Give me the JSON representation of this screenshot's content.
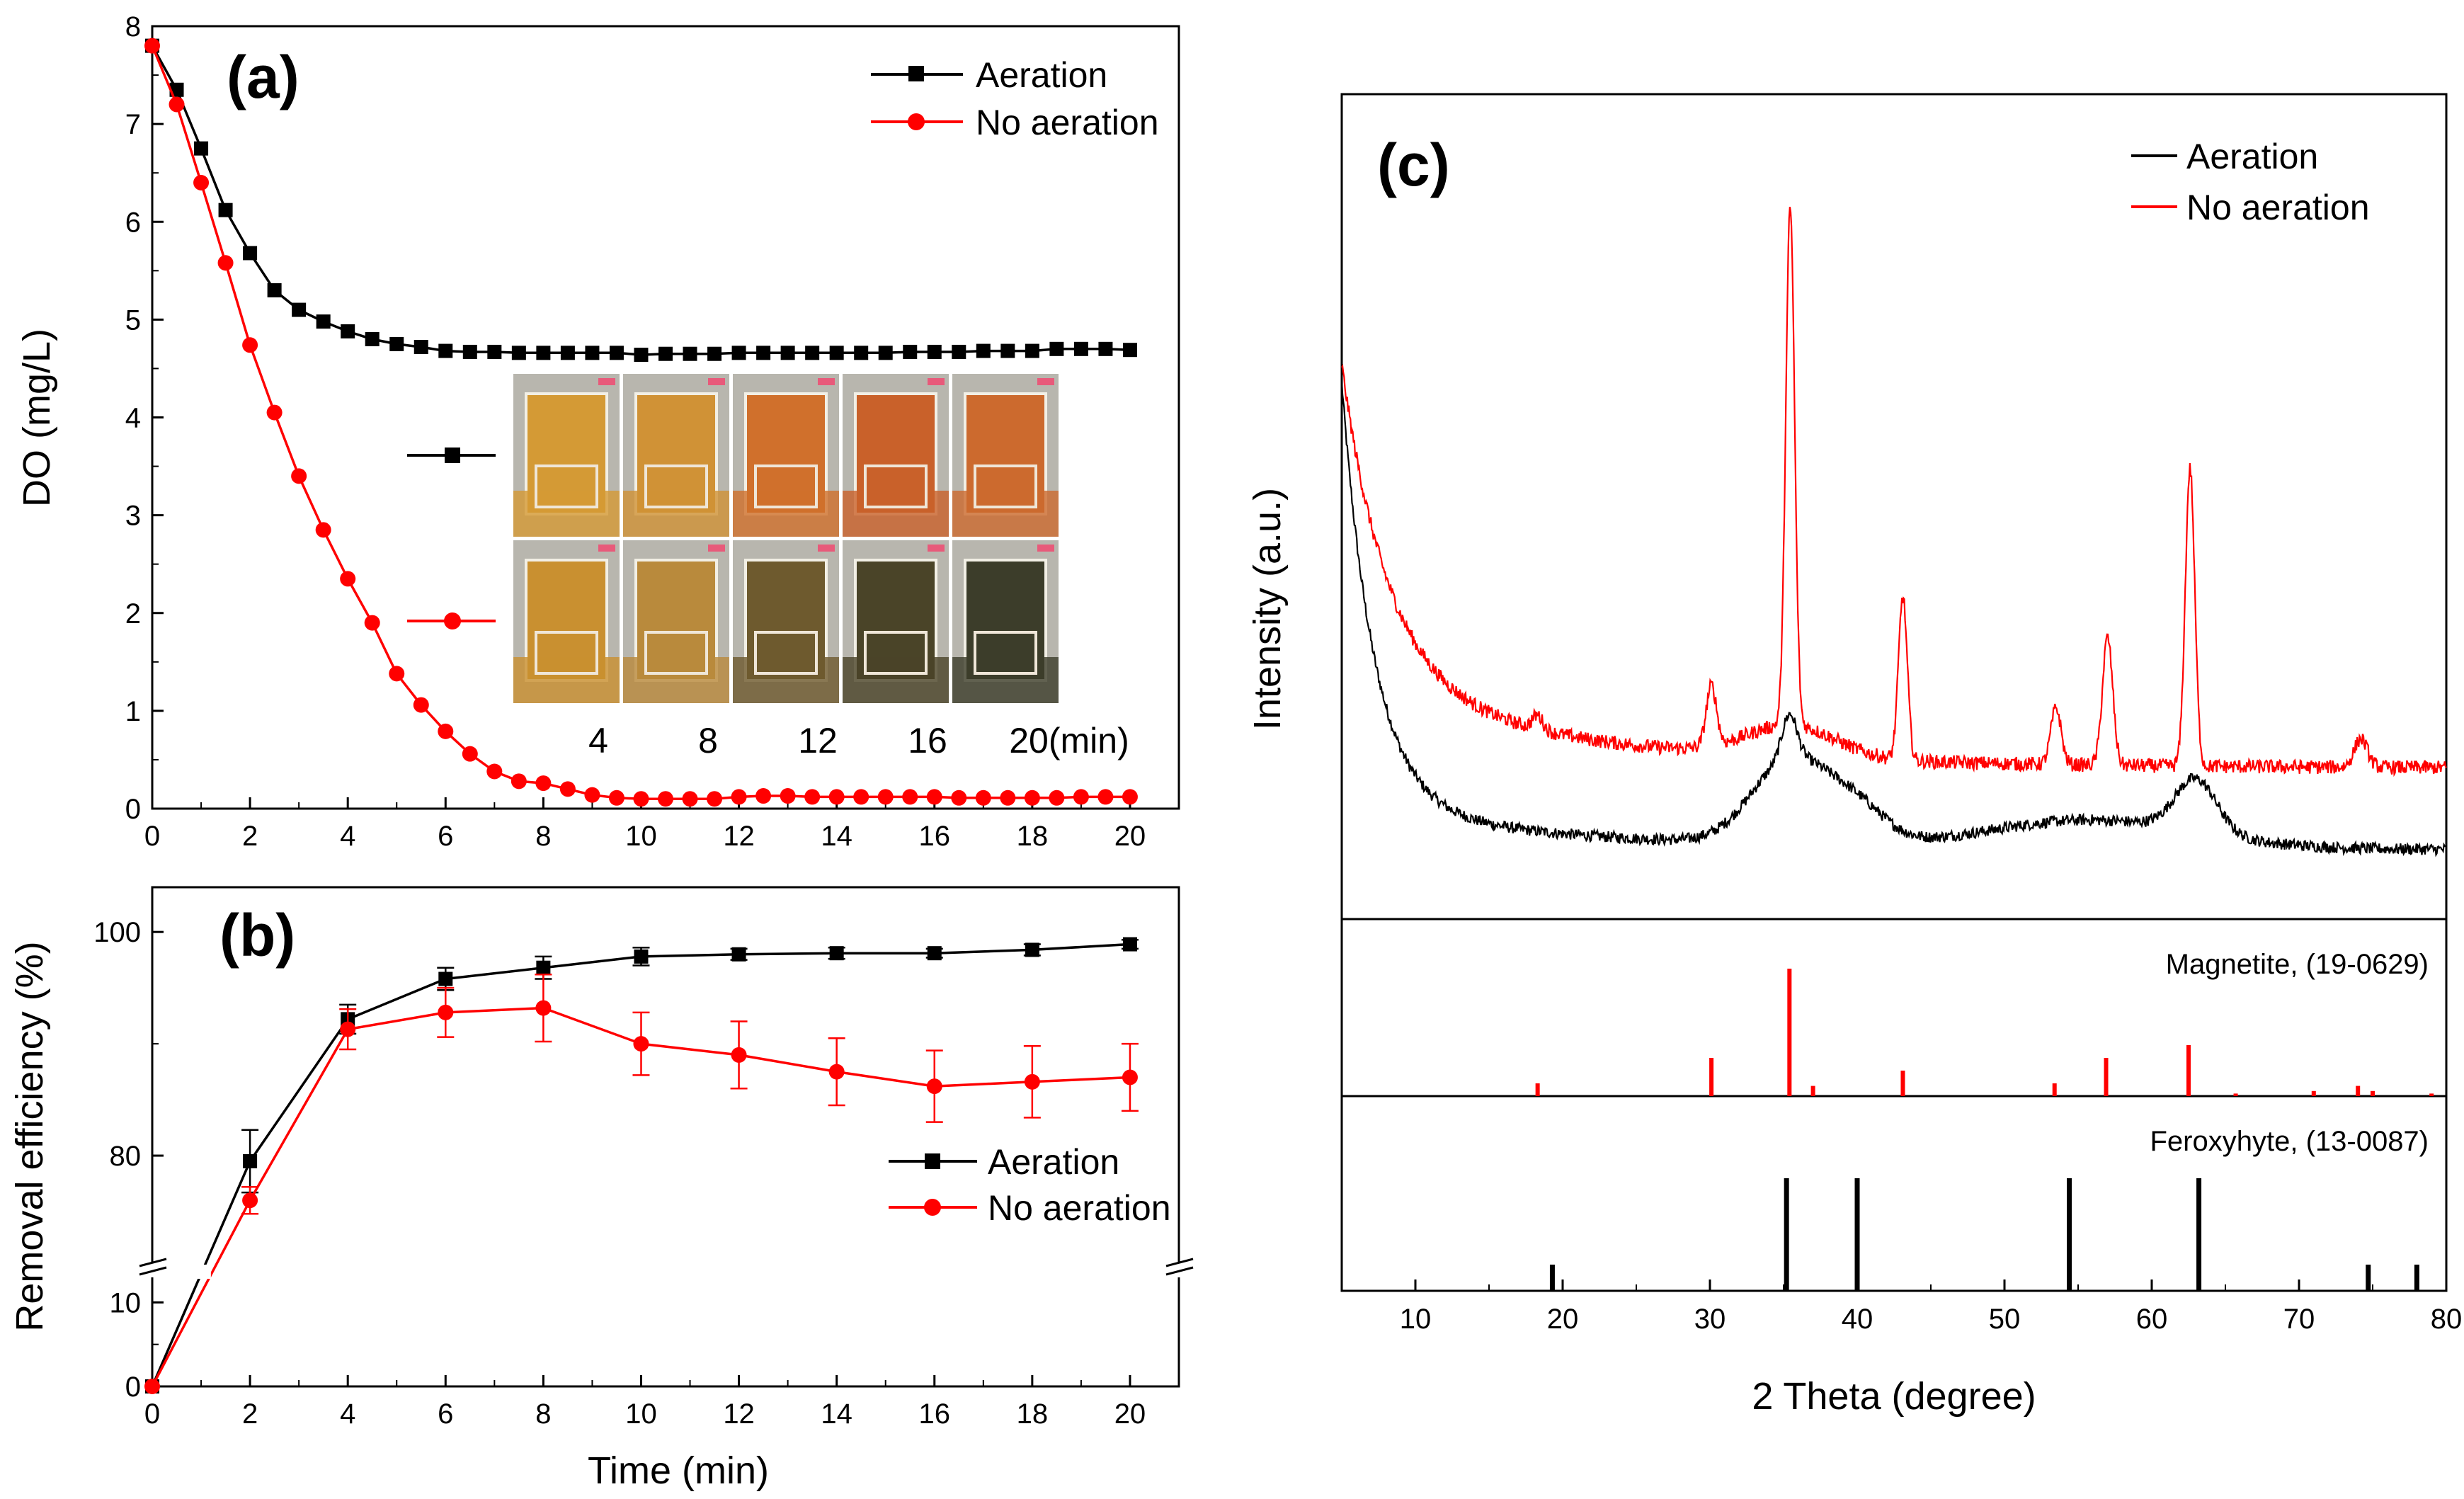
{
  "chart_data": [
    {
      "id": "a",
      "type": "line",
      "panel_label": "(a)",
      "xlabel": "",
      "ylabel": "DO (mg/L)",
      "xlim": [
        0,
        21
      ],
      "ylim": [
        0,
        8
      ],
      "xticks": [
        0,
        2,
        4,
        6,
        8,
        10,
        12,
        14,
        16,
        18,
        20
      ],
      "yticks": [
        0,
        1,
        2,
        3,
        4,
        5,
        6,
        7,
        8
      ],
      "legend_position": "top-right",
      "series": [
        {
          "name": "Aeration",
          "color": "#000000",
          "marker": "square",
          "x": [
            0,
            0.5,
            1,
            1.5,
            2,
            2.5,
            3,
            3.5,
            4,
            4.5,
            5,
            5.5,
            6,
            6.5,
            7,
            7.5,
            8,
            8.5,
            9,
            9.5,
            10,
            10.5,
            11,
            11.5,
            12,
            12.5,
            13,
            13.5,
            14,
            14.5,
            15,
            15.5,
            16,
            16.5,
            17,
            17.5,
            18,
            18.5,
            19,
            19.5,
            20
          ],
          "y": [
            7.8,
            7.35,
            6.75,
            6.12,
            5.68,
            5.3,
            5.1,
            4.98,
            4.88,
            4.8,
            4.75,
            4.72,
            4.68,
            4.67,
            4.67,
            4.66,
            4.66,
            4.66,
            4.66,
            4.66,
            4.64,
            4.65,
            4.65,
            4.65,
            4.66,
            4.66,
            4.66,
            4.66,
            4.66,
            4.66,
            4.66,
            4.67,
            4.67,
            4.67,
            4.68,
            4.68,
            4.68,
            4.7,
            4.7,
            4.7,
            4.69
          ]
        },
        {
          "name": "No aeration",
          "color": "#ff0000",
          "marker": "circle",
          "x": [
            0,
            0.5,
            1,
            1.5,
            2,
            2.5,
            3,
            3.5,
            4,
            4.5,
            5,
            5.5,
            6,
            6.5,
            7,
            7.5,
            8,
            8.5,
            9,
            9.5,
            10,
            10.5,
            11,
            11.5,
            12,
            12.5,
            13,
            13.5,
            14,
            14.5,
            15,
            15.5,
            16,
            16.5,
            17,
            17.5,
            18,
            18.5,
            19,
            19.5,
            20
          ],
          "y": [
            7.8,
            7.2,
            6.4,
            5.58,
            4.74,
            4.05,
            3.4,
            2.85,
            2.35,
            1.9,
            1.38,
            1.06,
            0.79,
            0.56,
            0.38,
            0.28,
            0.26,
            0.2,
            0.14,
            0.11,
            0.1,
            0.1,
            0.1,
            0.1,
            0.12,
            0.13,
            0.13,
            0.12,
            0.12,
            0.12,
            0.12,
            0.12,
            0.12,
            0.11,
            0.11,
            0.11,
            0.11,
            0.11,
            0.12,
            0.12,
            0.12
          ]
        }
      ],
      "inset": {
        "time_labels": [
          "4",
          "8",
          "12",
          "16",
          "20(min)"
        ],
        "top_row": "Aeration",
        "bottom_row": "No aeration",
        "top_colors": [
          "#d49a35",
          "#d09236",
          "#d0702c",
          "#c9612a",
          "#cc6a2e"
        ],
        "bottom_colors": [
          "#c99030",
          "#b98a3c",
          "#6e5a2e",
          "#4a4428",
          "#3c3d2a"
        ]
      }
    },
    {
      "id": "b",
      "type": "line",
      "panel_label": "(b)",
      "xlabel": "Time (min)",
      "ylabel": "Removal efficiency (%)",
      "xlim": [
        0,
        21
      ],
      "ylim_lower": [
        0,
        15
      ],
      "ylim_upper": [
        70,
        104
      ],
      "xticks": [
        0,
        2,
        4,
        6,
        8,
        10,
        12,
        14,
        16,
        18,
        20
      ],
      "yticks_lower": [
        0,
        10
      ],
      "yticks_upper": [
        80,
        100
      ],
      "axis_break": true,
      "legend_position": "lower-right",
      "series": [
        {
          "name": "Aeration",
          "color": "#000000",
          "marker": "square",
          "x": [
            0,
            2,
            4,
            6,
            8,
            10,
            12,
            14,
            16,
            18,
            20
          ],
          "y": [
            0,
            79.5,
            92.2,
            95.8,
            96.8,
            97.8,
            98.0,
            98.1,
            98.1,
            98.4,
            98.9
          ],
          "err": [
            0,
            2.8,
            1.3,
            1.0,
            1.0,
            0.8,
            0.5,
            0.5,
            0.4,
            0.5,
            0.4
          ]
        },
        {
          "name": "No aeration",
          "color": "#ff0000",
          "marker": "circle",
          "x": [
            0,
            2,
            4,
            6,
            8,
            10,
            12,
            14,
            16,
            18,
            20
          ],
          "y": [
            0,
            76.0,
            91.3,
            92.8,
            93.2,
            90.0,
            89.0,
            87.5,
            86.2,
            86.6,
            87.0
          ],
          "err": [
            0,
            1.2,
            1.8,
            2.2,
            3.0,
            2.8,
            3.0,
            3.0,
            3.2,
            3.2,
            3.0
          ]
        }
      ]
    },
    {
      "id": "c",
      "type": "line",
      "panel_label": "(c)",
      "xlabel": "2 Theta (degree)",
      "ylabel": "Intensity (a.u.)",
      "xlim": [
        5,
        80
      ],
      "xticks": [
        10,
        20,
        30,
        40,
        50,
        60,
        70,
        80
      ],
      "legend_position": "top-right",
      "series": [
        {
          "name": "Aeration",
          "color": "#000000"
        },
        {
          "name": "No aeration",
          "color": "#ff0000"
        }
      ],
      "references": [
        {
          "name": "Magnetite,  (19-0629)",
          "color": "#ff0000",
          "peaks": [
            {
              "x": 18.3,
              "h": 0.1
            },
            {
              "x": 30.1,
              "h": 0.3
            },
            {
              "x": 35.4,
              "h": 1.0
            },
            {
              "x": 37.0,
              "h": 0.08
            },
            {
              "x": 43.1,
              "h": 0.2
            },
            {
              "x": 53.4,
              "h": 0.1
            },
            {
              "x": 56.9,
              "h": 0.3
            },
            {
              "x": 62.5,
              "h": 0.4
            },
            {
              "x": 65.7,
              "h": 0.02
            },
            {
              "x": 71.0,
              "h": 0.04
            },
            {
              "x": 74.0,
              "h": 0.08
            },
            {
              "x": 75.0,
              "h": 0.04
            },
            {
              "x": 79.0,
              "h": 0.02
            }
          ]
        },
        {
          "name": "Feroxyhyte, (13-0087)",
          "color": "#000000",
          "peaks": [
            {
              "x": 19.3,
              "h": 0.2
            },
            {
              "x": 35.2,
              "h": 0.86
            },
            {
              "x": 40.0,
              "h": 0.86
            },
            {
              "x": 54.4,
              "h": 0.86
            },
            {
              "x": 63.2,
              "h": 0.86
            },
            {
              "x": 74.7,
              "h": 0.2
            },
            {
              "x": 78.0,
              "h": 0.2
            }
          ]
        }
      ]
    }
  ]
}
